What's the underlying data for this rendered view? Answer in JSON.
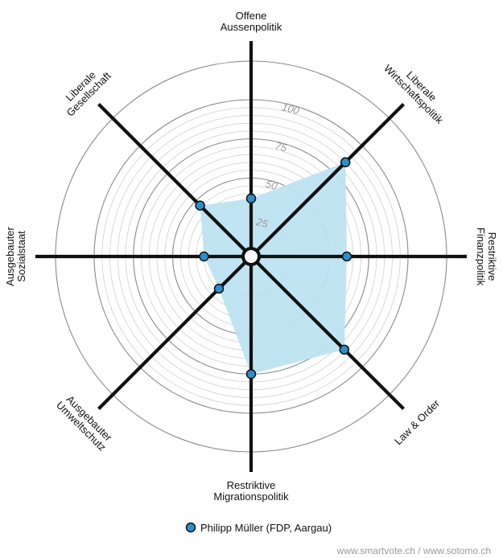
{
  "chart_data": {
    "type": "radar",
    "axes": [
      {
        "label": [
          "Offene",
          "Aussenpolitik"
        ]
      },
      {
        "label": [
          "Liberale",
          "Wirtschaftspolitik"
        ]
      },
      {
        "label": [
          "Restriktive",
          "Finanzpolitik"
        ]
      },
      {
        "label": [
          "Law & Order"
        ]
      },
      {
        "label": [
          "Restriktive",
          "Migrationspolitik"
        ]
      },
      {
        "label": [
          "Ausgebauter",
          "Umweltschutz"
        ]
      },
      {
        "label": [
          "Ausgebauter",
          "Sozialstaat"
        ]
      },
      {
        "label": [
          "Liberale",
          "Gesellschaft"
        ]
      }
    ],
    "range": [
      0,
      100
    ],
    "ticks": [
      25,
      50,
      75,
      100
    ],
    "series": [
      {
        "name": "Philipp Müller (FDP, Aargau)",
        "values": [
          37,
          85,
          61,
          84,
          75,
          29,
          30,
          46
        ]
      }
    ],
    "colors": {
      "fill": "#bde3f1",
      "point": "#2a8fcb",
      "axis": "#111111",
      "grid": "#cfcfcf",
      "grid_major": "#8a8a8a"
    },
    "legend_position": "bottom-center",
    "footer": "www.smartvote.ch / www.sotomo.ch"
  }
}
